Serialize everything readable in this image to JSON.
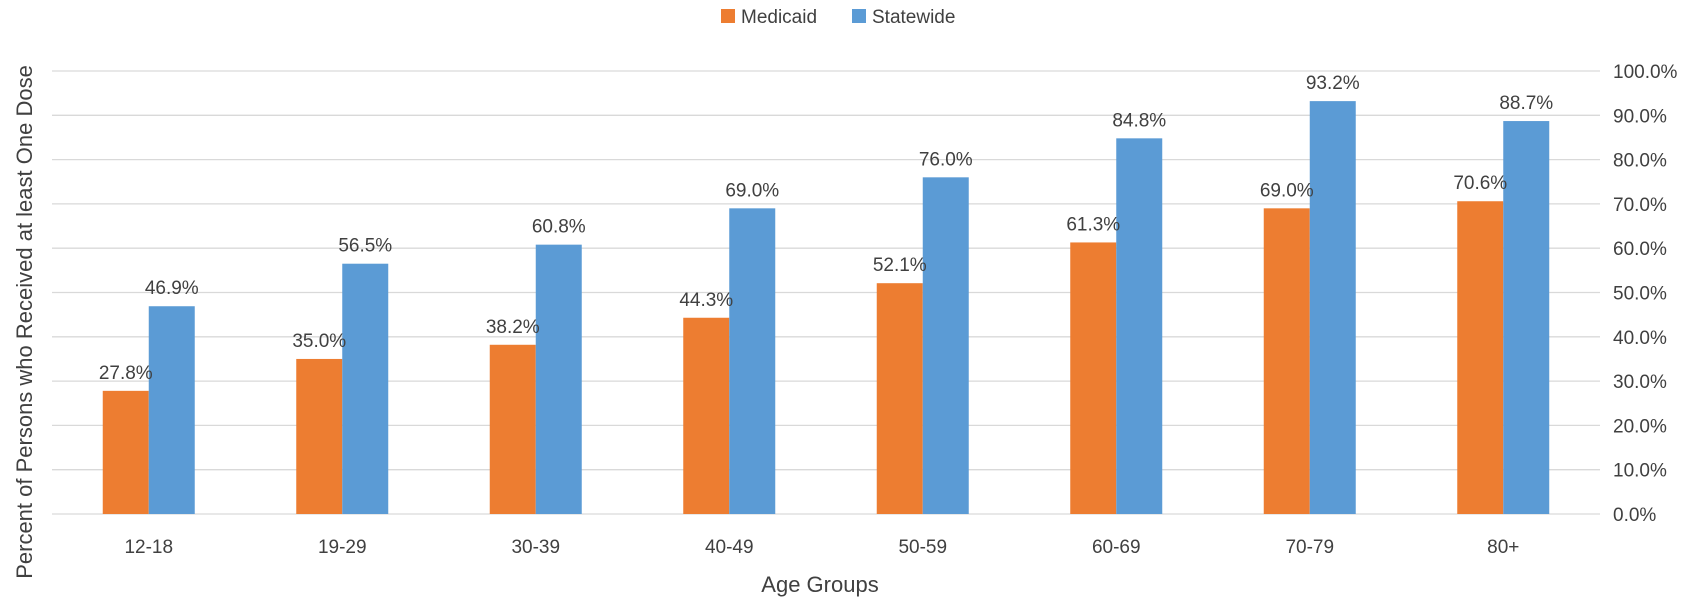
{
  "chart_data": {
    "type": "bar",
    "categories": [
      "12-18",
      "19-29",
      "30-39",
      "40-49",
      "50-59",
      "60-69",
      "70-79",
      "80+"
    ],
    "series": [
      {
        "name": "Medicaid",
        "color": "#ED7D31",
        "values": [
          27.8,
          35.0,
          38.2,
          44.3,
          52.1,
          61.3,
          69.0,
          70.6
        ],
        "labels": [
          "27.8%",
          "35.0%",
          "38.2%",
          "44.3%",
          "52.1%",
          "61.3%",
          "69.0%",
          "70.6%"
        ]
      },
      {
        "name": "Statewide",
        "color": "#5B9BD5",
        "values": [
          46.9,
          56.5,
          60.8,
          69.0,
          76.0,
          84.8,
          93.2,
          88.7
        ],
        "labels": [
          "46.9%",
          "56.5%",
          "60.8%",
          "69.0%",
          "76.0%",
          "84.8%",
          "93.2%",
          "88.7%"
        ]
      }
    ],
    "xlabel": "Age Groups",
    "ylabel": "Percent of Persons who Received at least One Dose",
    "ylim": [
      0,
      100
    ],
    "yticks": [
      "0.0%",
      "10.0%",
      "20.0%",
      "30.0%",
      "40.0%",
      "50.0%",
      "60.0%",
      "70.0%",
      "80.0%",
      "90.0%",
      "100.0%"
    ],
    "y_axis_position": "right",
    "grid": true,
    "legend": "top-center"
  }
}
